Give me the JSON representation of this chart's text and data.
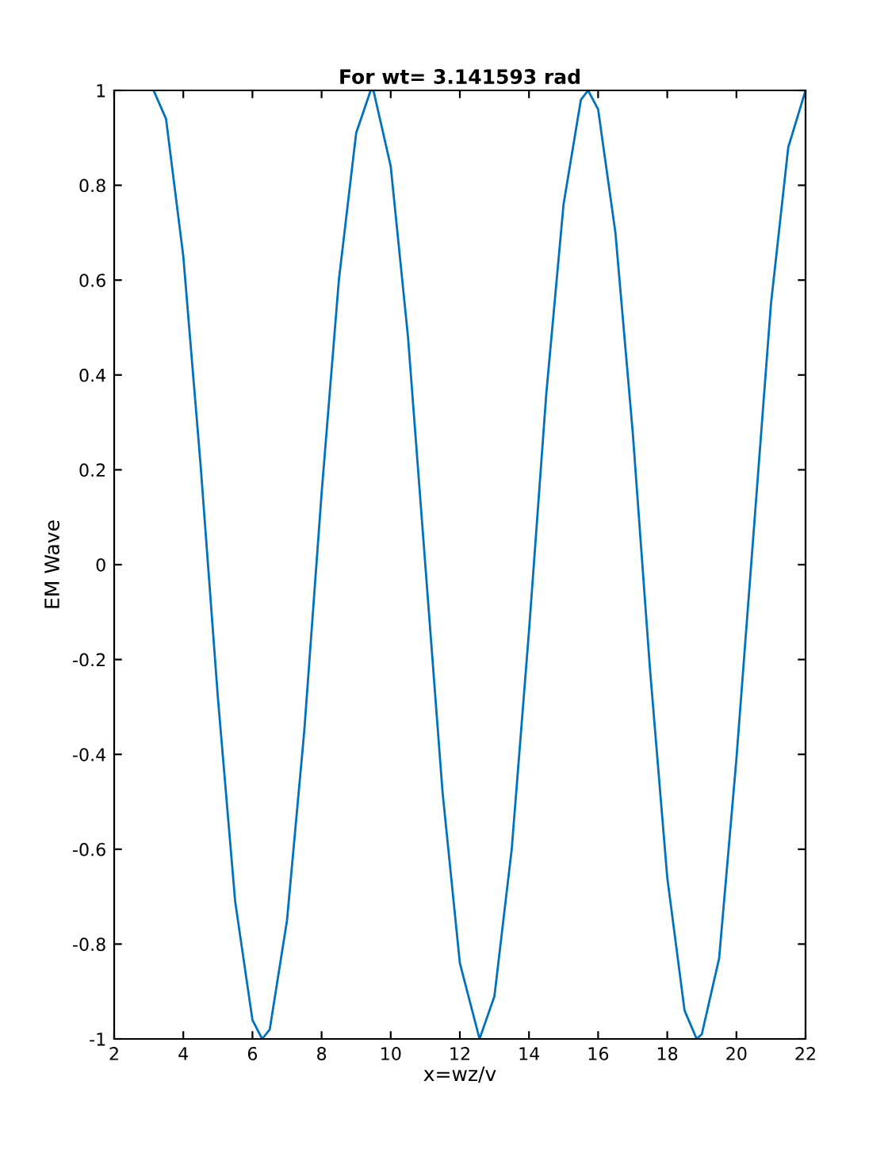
{
  "chart_data": {
    "type": "line",
    "title": "For wt= 3.141593 rad",
    "xlabel": "x=wz/v",
    "ylabel": "EM Wave",
    "series": [
      {
        "color": "#0072bd",
        "x": [
          3.14,
          3.5,
          4.0,
          4.5,
          5.0,
          5.5,
          6.0,
          6.28,
          6.5,
          7.0,
          7.5,
          8.0,
          8.5,
          9.0,
          9.42,
          9.5,
          10.0,
          10.5,
          11.0,
          11.5,
          12.0,
          12.57,
          13.0,
          13.5,
          14.0,
          14.5,
          15.0,
          15.5,
          15.71,
          16.0,
          16.5,
          17.0,
          17.5,
          18.0,
          18.5,
          18.85,
          19.0,
          19.5,
          20.0,
          20.5,
          21.0,
          21.5,
          22.0
        ],
        "values": [
          1.0,
          0.94,
          0.65,
          0.21,
          -0.28,
          -0.71,
          -0.96,
          -1.0,
          -0.98,
          -0.75,
          -0.35,
          0.15,
          0.6,
          0.91,
          1.0,
          1.0,
          0.84,
          0.48,
          0.0,
          -0.48,
          -0.84,
          -1.0,
          -0.91,
          -0.6,
          -0.14,
          0.36,
          0.76,
          0.98,
          1.0,
          0.96,
          0.7,
          0.28,
          -0.22,
          -0.66,
          -0.94,
          -1.0,
          -0.99,
          -0.83,
          -0.41,
          0.07,
          0.55,
          0.88,
          1.0
        ]
      }
    ],
    "xlim": [
      2,
      22
    ],
    "xticks": [
      2,
      4,
      6,
      8,
      10,
      12,
      14,
      16,
      18,
      20,
      22
    ],
    "ylim": [
      -1,
      1
    ],
    "yticks": [
      -1,
      -0.8,
      -0.6,
      -0.4,
      -0.2,
      0,
      0.2,
      0.4,
      0.6,
      0.8,
      1
    ],
    "grid": false,
    "legend": false,
    "line_style": "solid",
    "marker": "none"
  }
}
